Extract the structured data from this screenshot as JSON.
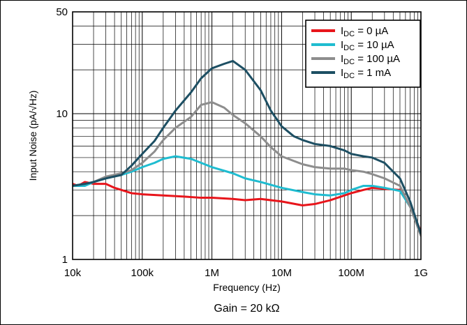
{
  "chart_data": {
    "type": "line",
    "x_scale": "log",
    "y_scale": "log",
    "xlim": [
      10000,
      1000000000
    ],
    "ylim": [
      1,
      50
    ],
    "grid": true,
    "legend_position": "top-right",
    "xlabel": "Frequency (Hz)",
    "ylabel": "Input Noise (pA/√Hz)",
    "x_ticks": [
      {
        "value": 10000,
        "label": "10k"
      },
      {
        "value": 100000,
        "label": "100k"
      },
      {
        "value": 1000000,
        "label": "1M"
      },
      {
        "value": 10000000,
        "label": "10M"
      },
      {
        "value": 100000000,
        "label": "100M"
      },
      {
        "value": 1000000000,
        "label": "1G"
      }
    ],
    "y_ticks": [
      {
        "value": 1,
        "label": "1"
      },
      {
        "value": 10,
        "label": "10"
      },
      {
        "value": 50,
        "label": "50"
      }
    ],
    "note": "Gain = 20 kΩ",
    "series": [
      {
        "name": "I_DC = 0 µA",
        "label_main": "I",
        "label_sub": "DC",
        "label_rest": " = 0 µA",
        "color": "#e8151b",
        "points": [
          [
            10000,
            3.3
          ],
          [
            12000,
            3.2
          ],
          [
            15000,
            3.4
          ],
          [
            20000,
            3.3
          ],
          [
            30000,
            3.3
          ],
          [
            40000,
            3.1
          ],
          [
            50000,
            3.0
          ],
          [
            70000,
            2.85
          ],
          [
            100000,
            2.8
          ],
          [
            200000,
            2.75
          ],
          [
            400000,
            2.7
          ],
          [
            700000,
            2.65
          ],
          [
            1000000,
            2.65
          ],
          [
            2000000,
            2.6
          ],
          [
            3000000,
            2.55
          ],
          [
            5000000,
            2.6
          ],
          [
            10000000,
            2.5
          ],
          [
            20000000,
            2.35
          ],
          [
            30000000,
            2.4
          ],
          [
            50000000,
            2.55
          ],
          [
            80000000,
            2.75
          ],
          [
            100000000,
            2.85
          ],
          [
            150000000,
            3.0
          ],
          [
            200000000,
            3.1
          ],
          [
            300000000,
            3.05
          ],
          [
            500000000,
            3.0
          ],
          [
            700000000,
            2.3
          ],
          [
            1000000000,
            1.55
          ]
        ]
      },
      {
        "name": "I_DC = 10 µA",
        "label_main": "I",
        "label_sub": "DC",
        "label_rest": " = 10 µA",
        "color": "#1fbcd0",
        "points": [
          [
            10000,
            3.2
          ],
          [
            15000,
            3.2
          ],
          [
            20000,
            3.4
          ],
          [
            30000,
            3.6
          ],
          [
            50000,
            3.8
          ],
          [
            70000,
            4.0
          ],
          [
            100000,
            4.3
          ],
          [
            150000,
            4.6
          ],
          [
            200000,
            4.9
          ],
          [
            300000,
            5.1
          ],
          [
            500000,
            4.9
          ],
          [
            700000,
            4.6
          ],
          [
            1000000,
            4.3
          ],
          [
            2000000,
            3.9
          ],
          [
            3000000,
            3.6
          ],
          [
            5000000,
            3.4
          ],
          [
            10000000,
            3.1
          ],
          [
            20000000,
            2.9
          ],
          [
            30000000,
            2.8
          ],
          [
            50000000,
            2.75
          ],
          [
            80000000,
            2.85
          ],
          [
            100000000,
            3.0
          ],
          [
            150000000,
            3.2
          ],
          [
            200000000,
            3.2
          ],
          [
            300000000,
            3.1
          ],
          [
            500000000,
            2.95
          ],
          [
            700000000,
            2.3
          ],
          [
            1000000000,
            1.5
          ]
        ]
      },
      {
        "name": "I_DC = 100 µA",
        "label_main": "I",
        "label_sub": "DC",
        "label_rest": " = 100 µA",
        "color": "#8d8d8d",
        "points": [
          [
            10000,
            3.2
          ],
          [
            15000,
            3.3
          ],
          [
            20000,
            3.4
          ],
          [
            30000,
            3.7
          ],
          [
            50000,
            3.9
          ],
          [
            70000,
            4.1
          ],
          [
            100000,
            4.6
          ],
          [
            150000,
            5.5
          ],
          [
            200000,
            6.6
          ],
          [
            300000,
            8.0
          ],
          [
            500000,
            9.5
          ],
          [
            700000,
            11.5
          ],
          [
            1000000,
            12.0
          ],
          [
            1500000,
            11.0
          ],
          [
            2000000,
            9.8
          ],
          [
            3000000,
            8.6
          ],
          [
            5000000,
            7.0
          ],
          [
            7000000,
            5.9
          ],
          [
            10000000,
            5.1
          ],
          [
            20000000,
            4.5
          ],
          [
            30000000,
            4.3
          ],
          [
            50000000,
            4.2
          ],
          [
            80000000,
            4.2
          ],
          [
            100000000,
            4.1
          ],
          [
            150000000,
            4.0
          ],
          [
            200000000,
            3.85
          ],
          [
            300000000,
            3.6
          ],
          [
            500000000,
            3.2
          ],
          [
            700000000,
            2.3
          ],
          [
            1000000000,
            1.45
          ]
        ]
      },
      {
        "name": "I_DC = 1 mA",
        "label_main": "I",
        "label_sub": "DC",
        "label_rest": " = 1 mA",
        "color": "#1d4f63",
        "points": [
          [
            10000,
            3.2
          ],
          [
            15000,
            3.3
          ],
          [
            20000,
            3.4
          ],
          [
            30000,
            3.6
          ],
          [
            50000,
            3.8
          ],
          [
            70000,
            4.4
          ],
          [
            100000,
            5.3
          ],
          [
            150000,
            6.5
          ],
          [
            200000,
            8.0
          ],
          [
            300000,
            10.5
          ],
          [
            500000,
            14.0
          ],
          [
            700000,
            17.5
          ],
          [
            1000000,
            20.5
          ],
          [
            1500000,
            22.0
          ],
          [
            2000000,
            23.0
          ],
          [
            3000000,
            20.0
          ],
          [
            5000000,
            14.5
          ],
          [
            7000000,
            10.5
          ],
          [
            10000000,
            8.2
          ],
          [
            15000000,
            7.0
          ],
          [
            20000000,
            6.6
          ],
          [
            30000000,
            6.2
          ],
          [
            50000000,
            6.0
          ],
          [
            80000000,
            5.6
          ],
          [
            100000000,
            5.3
          ],
          [
            150000000,
            5.1
          ],
          [
            200000000,
            5.0
          ],
          [
            300000000,
            4.6
          ],
          [
            400000000,
            4.0
          ],
          [
            500000000,
            3.6
          ],
          [
            700000000,
            2.5
          ],
          [
            1000000000,
            1.5
          ]
        ]
      }
    ]
  }
}
